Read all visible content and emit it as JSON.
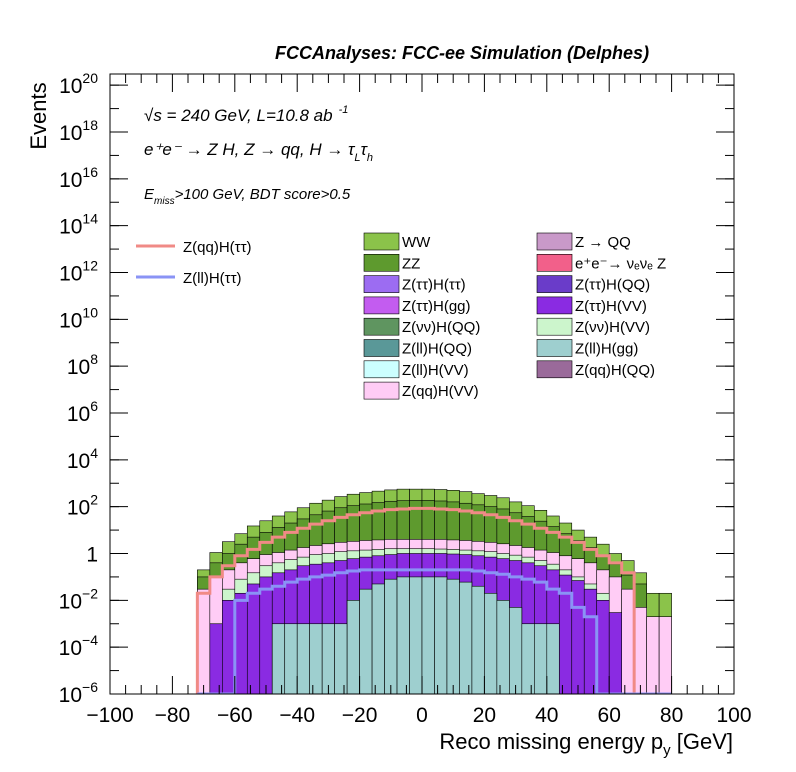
{
  "header": {
    "title": "FCCAnalyses: FCC-ee Simulation (Delphes)"
  },
  "annotations": {
    "energy_prefix": "√s = 240 GeV, L=10.8 ab",
    "energy_sup": "-1",
    "process": "e⁺e⁻ → Z H, Z → qq, H → τ",
    "process_sub1": "L",
    "process_tau2": "τ",
    "process_sub2": "h",
    "cut_e": "E",
    "cut_sub": "miss",
    "cut_rest": ">100 GeV, BDT score>0.5"
  },
  "legend": {
    "signals": [
      {
        "label": "Z(qq)H(ττ)",
        "color": "#f08a86"
      },
      {
        "label": "Z(ll)H(ττ)",
        "color": "#8a93f5"
      }
    ],
    "backgrounds": [
      {
        "label": "WW",
        "color": "#8bc34a"
      },
      {
        "label": "Z → QQ",
        "color": "#c999c9"
      },
      {
        "label": "ZZ",
        "color": "#5e9a2e"
      },
      {
        "label": "e⁺e⁻→ νₑνₑ Z",
        "color": "#f2608a"
      },
      {
        "label": "Z(ττ)H(ττ)",
        "color": "#9c6cf2"
      },
      {
        "label": "Z(ττ)H(QQ)",
        "color": "#6a3cc9"
      },
      {
        "label": "Z(ττ)H(gg)",
        "color": "#c35cf0"
      },
      {
        "label": "Z(ττ)H(VV)",
        "color": "#8a2be2"
      },
      {
        "label": "Z(νν)H(QQ)",
        "color": "#5f9560"
      },
      {
        "label": "Z(νν)H(VV)",
        "color": "#ccf5cc"
      },
      {
        "label": "Z(ll)H(QQ)",
        "color": "#5a9898"
      },
      {
        "label": "Z(ll)H(gg)",
        "color": "#9ecfcf"
      },
      {
        "label": "Z(ll)H(VV)",
        "color": "#ccffff"
      },
      {
        "label": "Z(qq)H(QQ)",
        "color": "#9a6a9a"
      },
      {
        "label": "Z(qq)H(VV)",
        "color": "#ffccf5"
      }
    ]
  },
  "chart_data": {
    "type": "area",
    "title": "FCCAnalyses: FCC-ee Simulation (Delphes)",
    "xlabel_main": "Reco missing energy p",
    "xlabel_sub": "y",
    "xlabel_unit": " [GeV]",
    "ylabel": "Events",
    "xlim": [
      -100,
      100
    ],
    "ylim": [
      1e-06,
      3e+20
    ],
    "yscale": "log",
    "grid": false,
    "legend_placement": "top",
    "xticks": [
      -100,
      -80,
      -60,
      -40,
      -20,
      0,
      20,
      40,
      60,
      80,
      100
    ],
    "xtick_labels": [
      "−100",
      "−80",
      "−60",
      "−40",
      "−20",
      "0",
      "20",
      "40",
      "60",
      "80",
      "100"
    ],
    "yticks": [
      {
        "value": 1e-06,
        "base": "10",
        "exp": "−6"
      },
      {
        "value": 0.0001,
        "base": "10",
        "exp": "−4"
      },
      {
        "value": 0.01,
        "base": "10",
        "exp": "−2"
      },
      {
        "value": 1,
        "base": "1",
        "exp": ""
      },
      {
        "value": 100.0,
        "base": "10",
        "exp": "2"
      },
      {
        "value": 10000.0,
        "base": "10",
        "exp": "4"
      },
      {
        "value": 1000000.0,
        "base": "10",
        "exp": "6"
      },
      {
        "value": 100000000.0,
        "base": "10",
        "exp": "8"
      },
      {
        "value": 10000000000.0,
        "base": "10",
        "exp": "10"
      },
      {
        "value": 1000000000000.0,
        "base": "10",
        "exp": "12"
      },
      {
        "value": 100000000000000.0,
        "base": "10",
        "exp": "14"
      },
      {
        "value": 1e+16,
        "base": "10",
        "exp": "16"
      },
      {
        "value": 1e+18,
        "base": "10",
        "exp": "18"
      },
      {
        "value": 1e+20,
        "base": "10",
        "exp": "20"
      }
    ],
    "bin_edges": [
      -72,
      -68,
      -64,
      -60,
      -56,
      -52,
      -48,
      -44,
      -40,
      -36,
      -32,
      -28,
      -24,
      -20,
      -16,
      -12,
      -8,
      -4,
      0,
      4,
      8,
      12,
      16,
      20,
      24,
      28,
      32,
      36,
      40,
      44,
      48,
      52,
      56,
      60,
      64,
      68,
      72,
      76,
      80
    ],
    "stack_totals": [
      {
        "name": "WW (stack total)",
        "color": "#8bc34a",
        "values": [
          0.2,
          1.1,
          3.2,
          7,
          15,
          25,
          40,
          60,
          90,
          140,
          190,
          270,
          340,
          400,
          460,
          520,
          560,
          560,
          560,
          540,
          500,
          440,
          360,
          300,
          240,
          160,
          110,
          70,
          40,
          20,
          10,
          5,
          2.5,
          1,
          0.5,
          0.15,
          0.02,
          0.02
        ]
      },
      {
        "name": "ZZ",
        "color": "#5e9a2e",
        "values": [
          0.1,
          0.4,
          1,
          2.5,
          5,
          8,
          13,
          20,
          30,
          45,
          65,
          90,
          110,
          130,
          150,
          170,
          180,
          185,
          185,
          175,
          160,
          140,
          120,
          100,
          80,
          55,
          38,
          24,
          14,
          7,
          3.5,
          1.8,
          0.8,
          0.35,
          0.12,
          0.05,
          0,
          0
        ]
      },
      {
        "name": "Z(qq)H(VV)",
        "color": "#ffccf5",
        "values": [
          0.03,
          0.1,
          0.2,
          0.4,
          0.6,
          0.9,
          1.1,
          1.4,
          1.8,
          2.2,
          2.6,
          3,
          3.3,
          3.6,
          3.8,
          4,
          4,
          4,
          4,
          4,
          3.8,
          3.6,
          3.3,
          3,
          2.6,
          2.2,
          1.8,
          1.4,
          1.1,
          0.8,
          0.6,
          0.4,
          0.2,
          0.1,
          0.03,
          0.005,
          0.002,
          0.002
        ]
      },
      {
        "name": "Z(νν)H(VV)",
        "color": "#ccf5cc",
        "values": [
          0,
          0,
          0.03,
          0.08,
          0.15,
          0.3,
          0.4,
          0.55,
          0.7,
          0.9,
          1,
          1.2,
          1.3,
          1.4,
          1.5,
          1.6,
          1.6,
          1.6,
          1.6,
          1.55,
          1.5,
          1.4,
          1.3,
          1.2,
          1,
          0.85,
          0.7,
          0.5,
          0.35,
          0.2,
          0.1,
          0.05,
          0.02,
          0,
          0,
          0,
          0,
          0
        ]
      },
      {
        "name": "Z(ττ)H(VV)",
        "color": "#8a2be2",
        "values": [
          0,
          0.001,
          0.01,
          0.02,
          0.05,
          0.1,
          0.15,
          0.2,
          0.3,
          0.35,
          0.4,
          0.5,
          0.6,
          0.7,
          0.8,
          0.9,
          1,
          1,
          1,
          1,
          0.95,
          0.9,
          0.8,
          0.7,
          0.6,
          0.5,
          0.4,
          0.3,
          0.2,
          0.12,
          0.07,
          0.03,
          0.01,
          0.003,
          0,
          0,
          0,
          0
        ]
      },
      {
        "name": "Z(ll)H(gg)",
        "color": "#9ecfcf",
        "values": [
          0,
          0,
          0,
          0,
          0,
          0,
          0.001,
          0.001,
          0.001,
          0.001,
          0.001,
          0.001,
          0.01,
          0.03,
          0.05,
          0.08,
          0.1,
          0.1,
          0.1,
          0.1,
          0.08,
          0.06,
          0.04,
          0.02,
          0.01,
          0.005,
          0.001,
          0.001,
          0.001,
          0,
          0,
          0,
          0,
          0,
          0,
          0,
          0,
          0
        ]
      }
    ],
    "signals": [
      {
        "name": "Z(qq)H(ττ)",
        "color": "#f08a86",
        "values": [
          0.02,
          0.1,
          0.3,
          0.8,
          1.5,
          3,
          5,
          8,
          12,
          18,
          25,
          35,
          45,
          55,
          65,
          75,
          80,
          85,
          85,
          80,
          75,
          65,
          55,
          45,
          35,
          25,
          18,
          12,
          8,
          5,
          3,
          1.5,
          0.8,
          0.4,
          0.15,
          0,
          0,
          0
        ]
      },
      {
        "name": "Z(ll)H(ττ)",
        "color": "#8a93f5",
        "values": [
          0,
          0,
          0,
          0.01,
          0.02,
          0.03,
          0.04,
          0.06,
          0.08,
          0.1,
          0.12,
          0.15,
          0.18,
          0.2,
          0.2,
          0.2,
          0.2,
          0.2,
          0.2,
          0.2,
          0.2,
          0.2,
          0.18,
          0.15,
          0.13,
          0.1,
          0.08,
          0.06,
          0.03,
          0.02,
          0.005,
          0.002,
          0,
          0,
          0,
          0,
          0,
          0
        ]
      }
    ]
  }
}
